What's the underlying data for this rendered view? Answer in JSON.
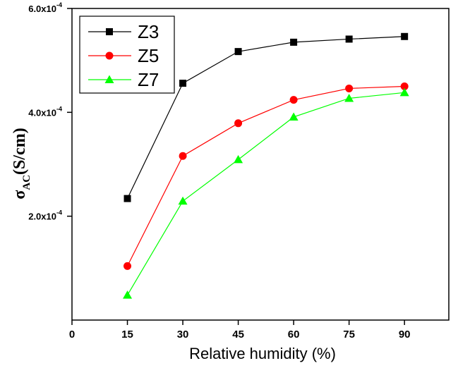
{
  "chart_data": {
    "type": "line",
    "title": "",
    "xlabel": "Relative humidity (%)",
    "ylabel": {
      "symbol": "σ",
      "subscript": "AC",
      "unit": "(S/cm)"
    },
    "x": [
      15,
      30,
      45,
      60,
      75,
      90
    ],
    "xlim": [
      0,
      102
    ],
    "ylim": [
      0.0,
      0.0006
    ],
    "x_ticks": [
      "0",
      "15",
      "30",
      "45",
      "60",
      "75",
      "90"
    ],
    "y_ticks": [
      {
        "value": 0.0002,
        "mantissa": "2.0x10",
        "exp": "-4"
      },
      {
        "value": 0.0004,
        "mantissa": "4.0x10",
        "exp": "-4"
      },
      {
        "value": 0.0006,
        "mantissa": "6.0x10",
        "exp": "-4"
      }
    ],
    "legend_position": "top-left",
    "series": [
      {
        "name": "Z3",
        "color": "#000000",
        "marker": "square",
        "values": [
          0.000234,
          0.000456,
          0.000517,
          0.000535,
          0.000541,
          0.000546
        ]
      },
      {
        "name": "Z5",
        "color": "#ff0000",
        "marker": "circle",
        "values": [
          0.000104,
          0.000316,
          0.000379,
          0.000424,
          0.000446,
          0.00045
        ]
      },
      {
        "name": "Z7",
        "color": "#00ff00",
        "marker": "triangle",
        "values": [
          4.8e-05,
          0.000229,
          0.000309,
          0.000391,
          0.000427,
          0.000438
        ]
      }
    ]
  }
}
